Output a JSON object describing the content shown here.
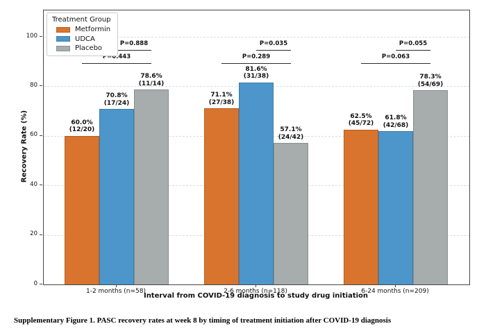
{
  "figure": {
    "caption": "Supplementary Figure 1. PASC recovery rates at week 8 by timing of treatment initiation after COVID-19 diagnosis"
  },
  "legend": {
    "title": "Treatment Group",
    "position": "upper left"
  },
  "chart_data": {
    "type": "bar",
    "title": "",
    "xlabel": "Interval from COVID-19 diagnosis to study drug initiation",
    "ylabel": "Recovery Rate (%)",
    "ylim": [
      0,
      110
    ],
    "yticks": [
      0,
      20,
      40,
      60,
      80,
      100
    ],
    "grid": "horizontal-dashed",
    "legend_position": "upper left",
    "categories": [
      "1-2 months (n=58)",
      "2-6 months (n=118)",
      "6-24 months (n=209)"
    ],
    "series": [
      {
        "name": "Metformin",
        "color": "#D9742E",
        "values": [
          60.0,
          71.1,
          62.5
        ],
        "fractions": [
          "12/20",
          "27/38",
          "45/72"
        ]
      },
      {
        "name": "UDCA",
        "color": "#4C96CB",
        "values": [
          70.8,
          81.6,
          61.8
        ],
        "fractions": [
          "17/24",
          "31/38",
          "42/68"
        ]
      },
      {
        "name": "Placebo",
        "color": "#A6ADAC",
        "values": [
          78.6,
          57.1,
          78.3
        ],
        "fractions": [
          "11/14",
          "24/42",
          "54/69"
        ]
      }
    ],
    "comparisons": [
      {
        "category_index": 0,
        "bars": [
          0,
          2
        ],
        "label": "P=0.443",
        "level": "lower"
      },
      {
        "category_index": 0,
        "bars": [
          1,
          2
        ],
        "label": "P=0.888",
        "level": "upper"
      },
      {
        "category_index": 1,
        "bars": [
          0,
          2
        ],
        "label": "P=0.289",
        "level": "lower"
      },
      {
        "category_index": 1,
        "bars": [
          1,
          2
        ],
        "label": "P=0.035",
        "level": "upper"
      },
      {
        "category_index": 2,
        "bars": [
          0,
          2
        ],
        "label": "P=0.063",
        "level": "lower"
      },
      {
        "category_index": 2,
        "bars": [
          1,
          2
        ],
        "label": "P=0.055",
        "level": "upper"
      }
    ]
  }
}
